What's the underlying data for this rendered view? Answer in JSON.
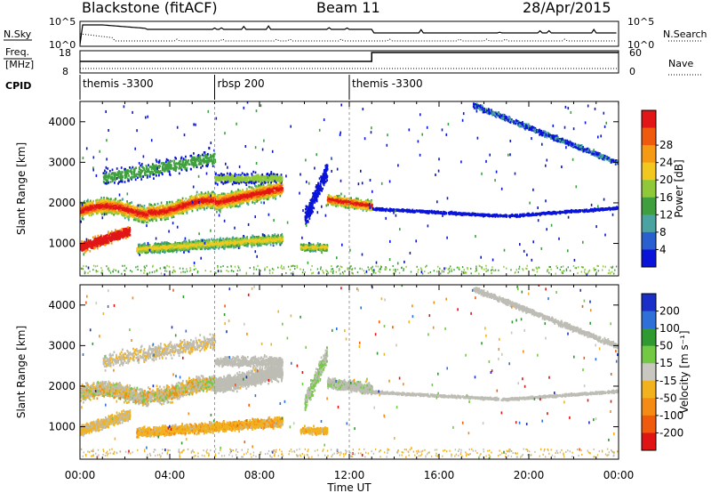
{
  "header": {
    "title": "Blackstone (fitACF)",
    "beam": "Beam 11",
    "date": "28/Apr/2015"
  },
  "chart_data": [
    {
      "type": "line",
      "name": "nsky-nsearch",
      "left_label": "N.Sky",
      "right_label": "N.Search",
      "left_ticks": [
        "10^5",
        "10^0"
      ],
      "right_ticks": [
        "10^5",
        "10^0"
      ]
    },
    {
      "type": "line",
      "name": "freq-nave",
      "left_label_1": "Freq.",
      "left_label_2": "[MHz]",
      "right_label": "Nave",
      "left_ticks": [
        18,
        8
      ],
      "right_ticks": [
        60,
        0
      ],
      "step_hour": 13.0
    },
    {
      "type": "table",
      "name": "cpid",
      "label": "CPID",
      "segments": [
        {
          "start": 0.0,
          "label": "themis -3300"
        },
        {
          "start": 6.0,
          "label": "rbsp 200"
        },
        {
          "start": 12.0,
          "label": "themis -3300"
        }
      ]
    },
    {
      "type": "heatmap",
      "name": "power",
      "ylabel": "Slant Range [km]",
      "ylim": [
        200,
        4500
      ],
      "yticks": [
        1000,
        2000,
        3000,
        4000
      ],
      "xlim": [
        0,
        24
      ],
      "colorbar_label": "Power [dB]",
      "colorbar_ticks": [
        4,
        8,
        12,
        16,
        20,
        24,
        28
      ],
      "colorbar_colors": [
        "#0a14d8",
        "#2a5fd0",
        "#4aa3a0",
        "#3f9f3f",
        "#8fc93a",
        "#f2c81e",
        "#f59a12",
        "#ef5a0c",
        "#e21616"
      ]
    },
    {
      "type": "heatmap",
      "name": "velocity",
      "ylabel": "Slant Range [km]",
      "ylim": [
        200,
        4500
      ],
      "yticks": [
        1000,
        2000,
        3000,
        4000
      ],
      "xlim": [
        0,
        24
      ],
      "xlabel": "Time UT",
      "xticks": [
        "00:00",
        "04:00",
        "08:00",
        "12:00",
        "16:00",
        "20:00",
        "00:00"
      ],
      "colorbar_label": "Velocity [m s⁻¹]",
      "colorbar_ticks": [
        "200",
        "100",
        "50",
        "15",
        "-15",
        "-50",
        "-100",
        "-200"
      ],
      "colorbar_colors": [
        "#1a2fc8",
        "#2e6fd8",
        "#2f9a2f",
        "#73c943",
        "#c8c8c0",
        "#f2b21e",
        "#f58a14",
        "#ef5a0c",
        "#e01414"
      ]
    }
  ],
  "colors": {
    "ground_scatter": "#bdbdb5",
    "velocity_neg": "#f2a21e",
    "power_low": "#1a3fd0",
    "power_mid": "#3fa33f",
    "power_high": "#e21616"
  }
}
